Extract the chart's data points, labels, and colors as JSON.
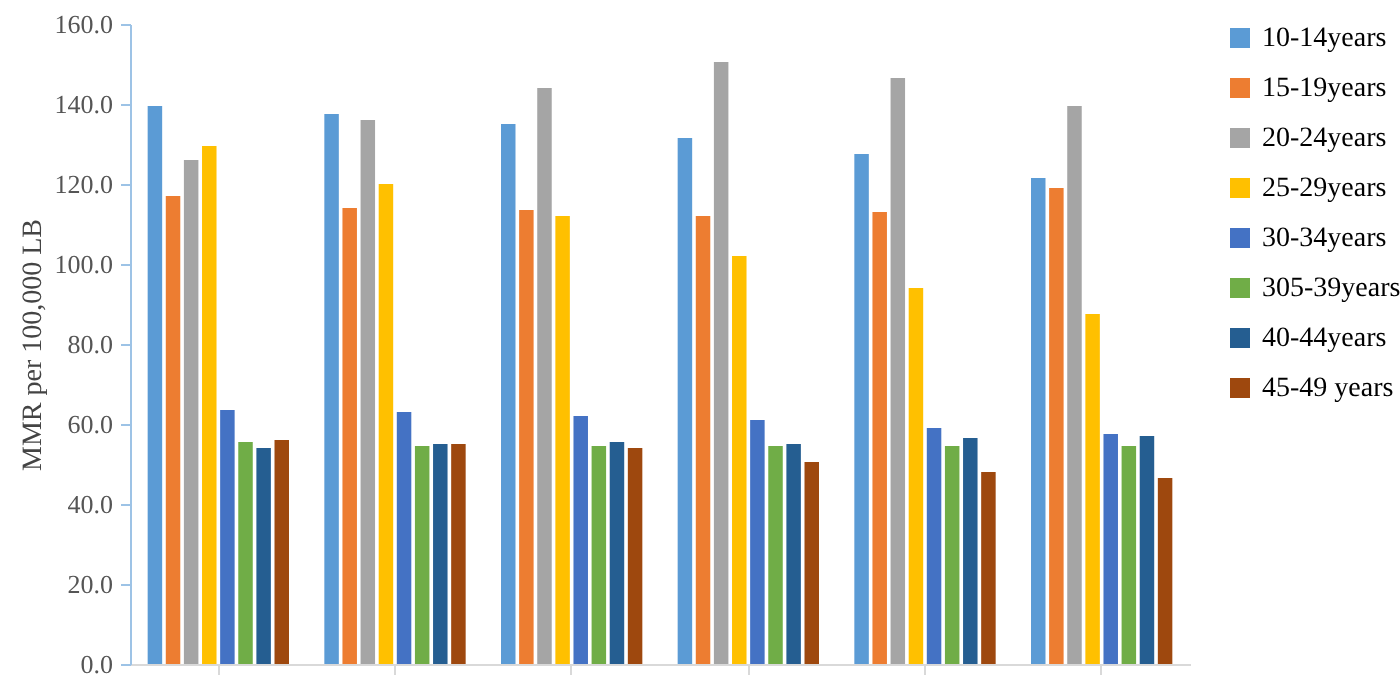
{
  "chart_data": {
    "type": "bar",
    "ylabel": "MMR per 100,000 LB",
    "categories": [
      null,
      null,
      null,
      null,
      null,
      null
    ],
    "ylim": [
      0,
      160
    ],
    "yticks": [
      {
        "value": 0,
        "label": "0.0"
      },
      {
        "value": 20,
        "label": "20.0"
      },
      {
        "value": 40,
        "label": "40.0"
      },
      {
        "value": 60,
        "label": "60.0"
      },
      {
        "value": 80,
        "label": "80.0"
      },
      {
        "value": 100,
        "label": "100.0"
      },
      {
        "value": 120,
        "label": "120.0"
      },
      {
        "value": 140,
        "label": "140.0"
      },
      {
        "value": 160,
        "label": "160.0"
      }
    ],
    "grid": false,
    "legend": "right",
    "series": [
      {
        "name": "10-14years",
        "color": "#5b9bd5",
        "values": [
          139.5,
          137.5,
          135,
          131.5,
          127.5,
          121.5
        ]
      },
      {
        "name": "15-19years",
        "color": "#ed7d31",
        "values": [
          117,
          114,
          113.5,
          112,
          113,
          119
        ]
      },
      {
        "name": "20-24years",
        "color": "#a5a5a5",
        "values": [
          126,
          136,
          144,
          150.5,
          146.5,
          139.5
        ]
      },
      {
        "name": "25-29years",
        "color": "#ffc000",
        "values": [
          129.5,
          120,
          112,
          102,
          94,
          87.5
        ]
      },
      {
        "name": "30-34years",
        "color": "#4472c4",
        "values": [
          63.5,
          63,
          62,
          61,
          59,
          57.5
        ]
      },
      {
        "name": "305-39years",
        "color": "#70ad47",
        "values": [
          55.5,
          54.5,
          54.5,
          54.5,
          54.5,
          54.5
        ]
      },
      {
        "name": "40-44years",
        "color": "#255e91",
        "values": [
          54,
          55,
          55.5,
          55,
          56.5,
          57
        ]
      },
      {
        "name": "45-49 years",
        "color": "#9e480e",
        "values": [
          56,
          55,
          54,
          50.5,
          48,
          46.5
        ]
      }
    ]
  }
}
